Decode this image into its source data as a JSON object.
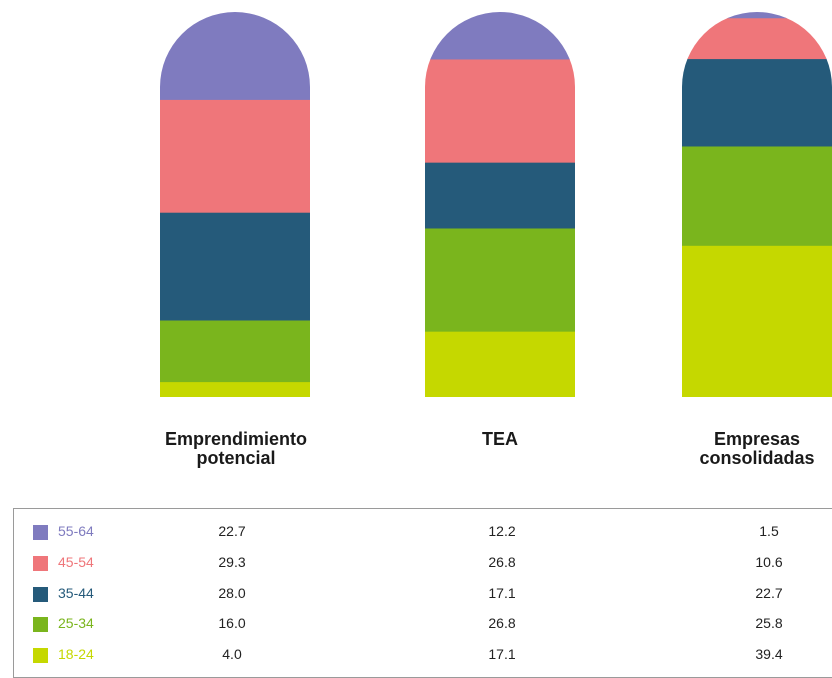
{
  "chart_data": {
    "type": "bar",
    "stacked": true,
    "categories": [
      "Emprendimiento\npotencial",
      "TEA",
      "Empresas\nconsolidadas"
    ],
    "series": [
      {
        "name": "18-24",
        "color": "#c5d800",
        "values": [
          4.0,
          17.1,
          39.4
        ]
      },
      {
        "name": "25-34",
        "color": "#7ab51d",
        "values": [
          16.0,
          26.8,
          25.8
        ]
      },
      {
        "name": "35-44",
        "color": "#255a7a",
        "values": [
          28.0,
          17.1,
          22.7
        ]
      },
      {
        "name": "45-54",
        "color": "#ef767a",
        "values": [
          29.3,
          26.8,
          10.6
        ]
      },
      {
        "name": "55-64",
        "color": "#7f7bbf",
        "values": [
          22.7,
          12.2,
          1.5
        ]
      }
    ],
    "table_rows": [
      {
        "label": "55-64",
        "color": "#7f7bbf",
        "values": [
          "22.7",
          "12.2",
          "1.5"
        ]
      },
      {
        "label": "45-54",
        "color": "#ef767a",
        "values": [
          "29.3",
          "26.8",
          "10.6"
        ]
      },
      {
        "label": "35-44",
        "color": "#255a7a",
        "values": [
          "28.0",
          "17.1",
          "22.7"
        ]
      },
      {
        "label": "25-34",
        "color": "#7ab51d",
        "values": [
          "16.0",
          "26.8",
          "25.8"
        ]
      },
      {
        "label": "18-24",
        "color": "#c5d800",
        "values": [
          "4.0",
          "17.1",
          "39.4"
        ]
      }
    ],
    "legend_position": "bottom",
    "grid": false,
    "title": "",
    "xlabel": "",
    "ylabel": ""
  }
}
